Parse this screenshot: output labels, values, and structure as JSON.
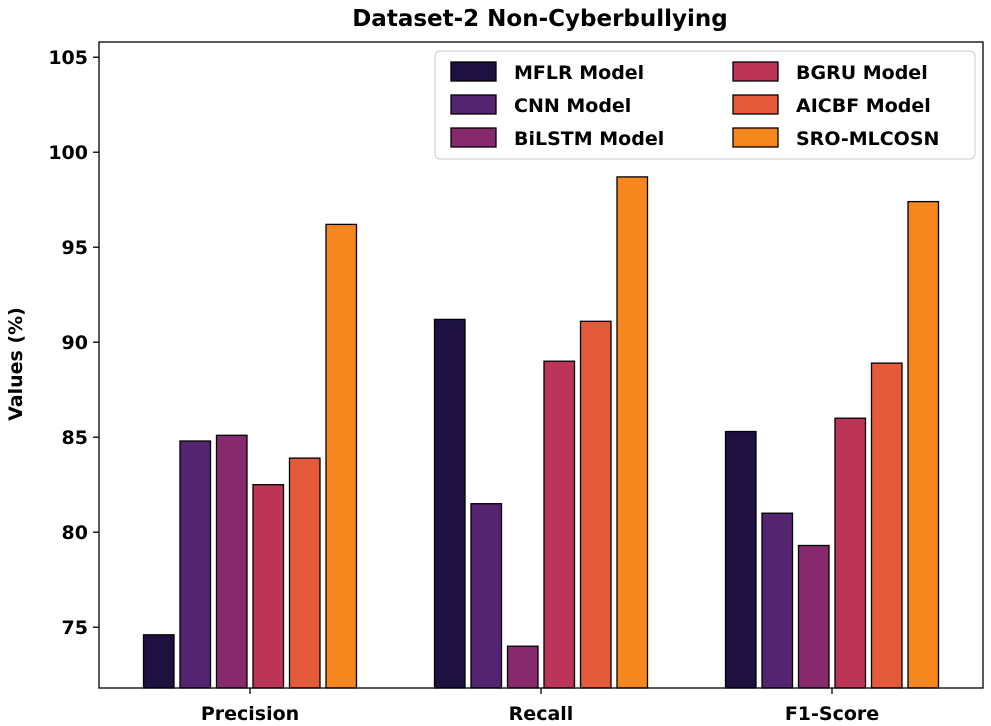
{
  "chart_data": {
    "type": "bar",
    "title": "Dataset-2 Non-Cyberbullying",
    "xlabel": "",
    "ylabel": "Values (%)",
    "ylim": [
      71.8,
      105.8
    ],
    "yticks": [
      75,
      80,
      85,
      90,
      95,
      100,
      105
    ],
    "categories": [
      "Precision",
      "Recall",
      "F1-Score"
    ],
    "series": [
      {
        "name": "MFLR Model",
        "color": "#1e1141",
        "values": [
          74.6,
          91.2,
          85.3
        ]
      },
      {
        "name": "CNN Model",
        "color": "#542470",
        "values": [
          84.8,
          81.5,
          81.0
        ]
      },
      {
        "name": "BiLSTM Model",
        "color": "#872a6d",
        "values": [
          85.1,
          74.0,
          79.3
        ]
      },
      {
        "name": "BGRU Model",
        "color": "#bc3457",
        "values": [
          82.5,
          89.0,
          86.0
        ]
      },
      {
        "name": "AICBF Model",
        "color": "#e55a3b",
        "values": [
          83.9,
          91.1,
          88.9
        ]
      },
      {
        "name": "SRO-MLCOSN",
        "color": "#f6871f",
        "values": [
          96.2,
          98.7,
          97.4
        ]
      }
    ],
    "legend": {
      "position": "top-right",
      "columns": 2
    },
    "grid": false
  }
}
